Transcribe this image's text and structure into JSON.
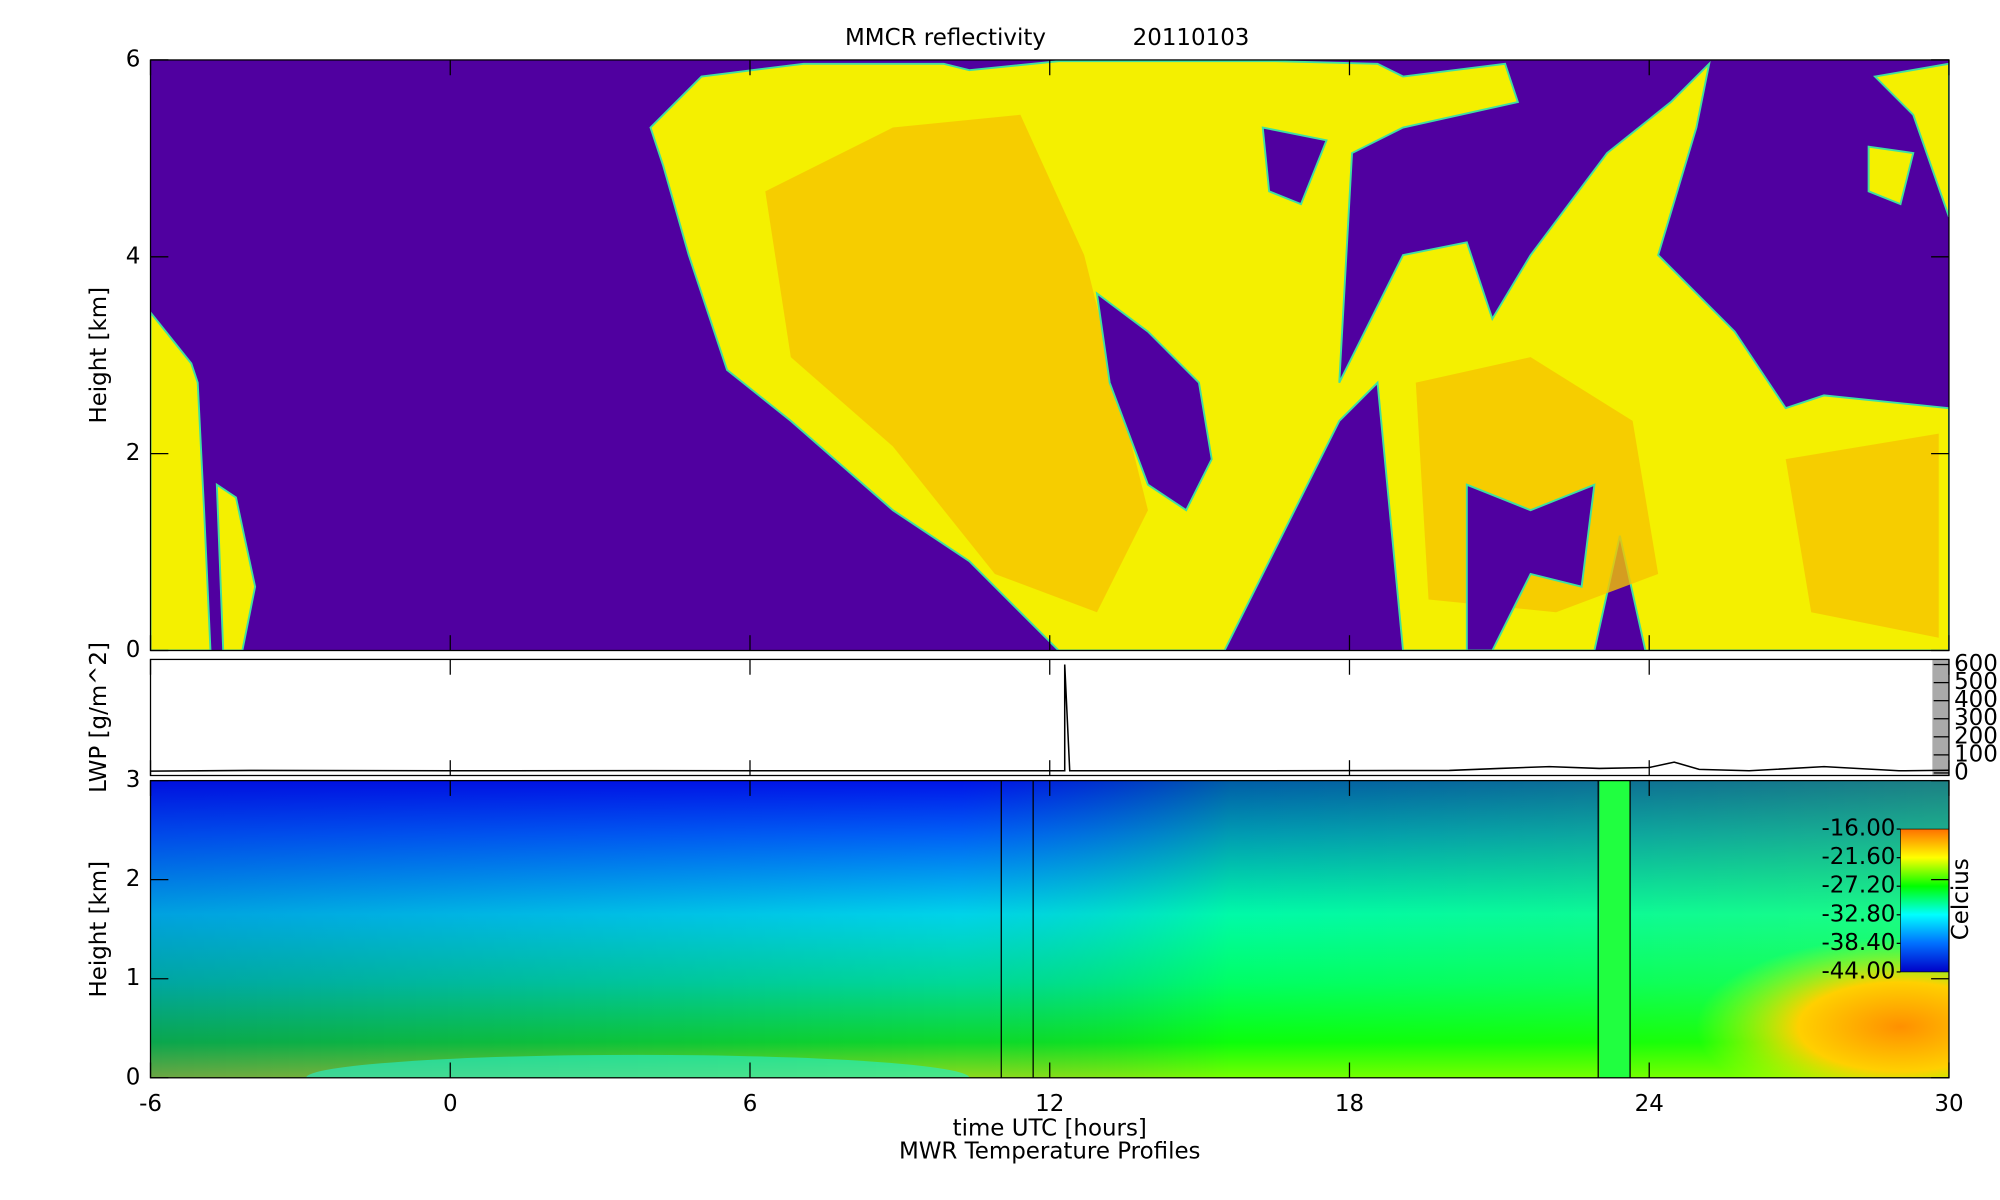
{
  "chart_data": [
    {
      "type": "heatmap",
      "title": "MMCR reflectivity",
      "subtitle": "20110103",
      "ylabel": "Height [km]",
      "xlim": [
        -6,
        30
      ],
      "ylim": [
        0,
        6
      ],
      "yticks": [
        0,
        2,
        4,
        6
      ]
    },
    {
      "type": "line",
      "ylabel": "LWP [g/m^2]",
      "xlim": [
        -6,
        30
      ],
      "y2lim": [
        0,
        600
      ],
      "y2ticks": [
        0,
        100,
        200,
        300,
        400,
        500,
        600
      ],
      "color": "#000000",
      "x": [
        -6,
        -4,
        0,
        4,
        8,
        11,
        12.3,
        12.3,
        12.4,
        16,
        20,
        21,
        22,
        23,
        24,
        24.5,
        25,
        26,
        27.5,
        29,
        30
      ],
      "values": [
        10,
        14,
        12,
        13,
        12,
        12,
        12,
        600,
        12,
        12,
        14,
        25,
        35,
        25,
        30,
        60,
        20,
        12,
        35,
        12,
        15
      ]
    },
    {
      "type": "heatmap",
      "xlabel": "time UTC [hours]",
      "subtitle": "MWR Temperature Profiles",
      "ylabel": "Height [km]",
      "xlim": [
        -6,
        30
      ],
      "xticks": [
        -6,
        0,
        6,
        12,
        18,
        24,
        30
      ],
      "ylim": [
        0,
        3
      ],
      "yticks": [
        0,
        1,
        2,
        3
      ],
      "colorbar": {
        "label": "Celcius",
        "lim": [
          -44,
          -16
        ],
        "ticks": [
          {
            "value": -16,
            "label": "-16.00"
          },
          {
            "value": -21.6,
            "label": "-21.60"
          },
          {
            "value": -27.2,
            "label": "-27.20"
          },
          {
            "value": -32.8,
            "label": "-32.80"
          },
          {
            "value": -38.4,
            "label": "-38.40"
          },
          {
            "value": -44,
            "label": "-44.00"
          }
        ]
      }
    }
  ]
}
